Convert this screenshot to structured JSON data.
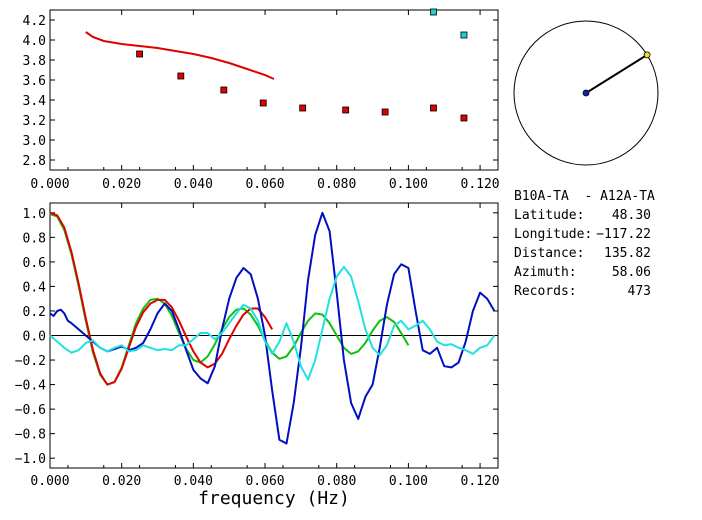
{
  "colors": {
    "red": "#e00000",
    "green": "#10c010",
    "blue": "#0010c0",
    "cyan": "#20e0e0",
    "square_red": "#e00000",
    "square_cyan": "#20d0d0",
    "station_yellow": "#e8e020",
    "station_blue": "#1020b0"
  },
  "chart_data": [
    {
      "type": "scatter",
      "name_hint": "top-panel",
      "xlim": [
        0.0,
        0.125
      ],
      "ylim": [
        2.7,
        4.3
      ],
      "xticks": [
        "0.000",
        "0.020",
        "0.040",
        "0.060",
        "0.080",
        "0.100",
        "0.120"
      ],
      "xtick_values": [
        0.0,
        0.02,
        0.04,
        0.06,
        0.08,
        0.1,
        0.12
      ],
      "yticks": [
        "2.8",
        "3.0",
        "3.2",
        "3.4",
        "3.6",
        "3.8",
        "4.0",
        "4.2"
      ],
      "ytick_values": [
        2.8,
        3.0,
        3.2,
        3.4,
        3.6,
        3.8,
        4.0,
        4.2
      ],
      "curve": {
        "color": "red",
        "x": [
          0.01,
          0.012,
          0.015,
          0.02,
          0.025,
          0.03,
          0.035,
          0.04,
          0.045,
          0.05,
          0.055,
          0.06,
          0.0625
        ],
        "y": [
          4.08,
          4.03,
          3.99,
          3.96,
          3.94,
          3.92,
          3.89,
          3.86,
          3.82,
          3.77,
          3.71,
          3.65,
          3.61
        ]
      },
      "points_red": {
        "x": [
          0.025,
          0.0365,
          0.0485,
          0.0595,
          0.0705,
          0.0825,
          0.0935,
          0.107,
          0.1155
        ],
        "y": [
          3.86,
          3.64,
          3.5,
          3.37,
          3.32,
          3.3,
          3.28,
          3.32,
          3.22
        ]
      },
      "points_cyan": {
        "x": [
          0.107,
          0.1155
        ],
        "y": [
          4.28,
          4.05
        ]
      }
    },
    {
      "type": "line",
      "name_hint": "bottom-panel",
      "xlabel": "frequency (Hz)",
      "xlim": [
        0.0,
        0.125
      ],
      "ylim": [
        -1.08,
        1.08
      ],
      "xticks": [
        "0.000",
        "0.020",
        "0.040",
        "0.060",
        "0.080",
        "0.100",
        "0.120"
      ],
      "xtick_values": [
        0.0,
        0.02,
        0.04,
        0.06,
        0.08,
        0.1,
        0.12
      ],
      "yticks": [
        "1.0",
        "0.8",
        "0.6",
        "0.4",
        "0.2",
        "0.0",
        "−0.2",
        "−0.4",
        "−0.6",
        "−0.8",
        "−1.0"
      ],
      "ytick_values": [
        1.0,
        0.8,
        0.6,
        0.4,
        0.2,
        0.0,
        -0.2,
        -0.4,
        -0.6,
        -0.8,
        -1.0
      ],
      "series": [
        {
          "color": "green",
          "x": [
            0.0,
            0.002,
            0.004,
            0.006,
            0.008,
            0.01,
            0.012,
            0.014,
            0.016,
            0.018,
            0.02,
            0.022,
            0.024,
            0.026,
            0.028,
            0.03,
            0.032,
            0.034,
            0.036,
            0.038,
            0.04,
            0.042,
            0.044,
            0.046,
            0.048,
            0.05,
            0.052,
            0.054,
            0.056,
            0.058,
            0.06,
            0.062,
            0.064,
            0.066,
            0.068,
            0.07,
            0.072,
            0.074,
            0.076,
            0.078,
            0.08,
            0.082,
            0.084,
            0.086,
            0.088,
            0.09,
            0.092,
            0.094,
            0.096,
            0.098,
            0.1
          ],
          "y": [
            0.99,
            0.97,
            0.86,
            0.66,
            0.4,
            0.12,
            -0.14,
            -0.32,
            -0.4,
            -0.38,
            -0.26,
            -0.08,
            0.1,
            0.22,
            0.29,
            0.3,
            0.26,
            0.16,
            0.02,
            -0.11,
            -0.2,
            -0.22,
            -0.17,
            -0.07,
            0.05,
            0.15,
            0.21,
            0.22,
            0.17,
            0.08,
            -0.04,
            -0.14,
            -0.19,
            -0.17,
            -0.09,
            0.02,
            0.12,
            0.18,
            0.17,
            0.1,
            0.0,
            -0.1,
            -0.15,
            -0.13,
            -0.06,
            0.04,
            0.12,
            0.15,
            0.11,
            0.02,
            -0.08
          ]
        },
        {
          "color": "red",
          "x": [
            0.0,
            0.002,
            0.004,
            0.006,
            0.008,
            0.01,
            0.012,
            0.014,
            0.016,
            0.018,
            0.02,
            0.022,
            0.024,
            0.026,
            0.028,
            0.03,
            0.032,
            0.034,
            0.036,
            0.038,
            0.04,
            0.042,
            0.044,
            0.046,
            0.048,
            0.05,
            0.052,
            0.054,
            0.056,
            0.058,
            0.06,
            0.062
          ],
          "y": [
            1.0,
            0.98,
            0.88,
            0.68,
            0.42,
            0.14,
            -0.12,
            -0.31,
            -0.4,
            -0.38,
            -0.27,
            -0.1,
            0.07,
            0.19,
            0.26,
            0.29,
            0.29,
            0.23,
            0.12,
            -0.01,
            -0.13,
            -0.22,
            -0.26,
            -0.23,
            -0.15,
            -0.03,
            0.08,
            0.17,
            0.22,
            0.22,
            0.15,
            0.05
          ]
        },
        {
          "color": "blue",
          "x": [
            0.0,
            0.001,
            0.002,
            0.003,
            0.004,
            0.005,
            0.006,
            0.008,
            0.01,
            0.012,
            0.014,
            0.016,
            0.018,
            0.02,
            0.022,
            0.024,
            0.026,
            0.028,
            0.03,
            0.032,
            0.034,
            0.036,
            0.038,
            0.04,
            0.042,
            0.044,
            0.046,
            0.048,
            0.05,
            0.052,
            0.054,
            0.056,
            0.058,
            0.06,
            0.062,
            0.064,
            0.066,
            0.068,
            0.07,
            0.072,
            0.074,
            0.076,
            0.078,
            0.08,
            0.082,
            0.084,
            0.086,
            0.088,
            0.09,
            0.092,
            0.094,
            0.096,
            0.098,
            0.1,
            0.102,
            0.104,
            0.106,
            0.108,
            0.11,
            0.112,
            0.114,
            0.116,
            0.118,
            0.12,
            0.122,
            0.124
          ],
          "y": [
            0.18,
            0.16,
            0.2,
            0.21,
            0.18,
            0.12,
            0.1,
            0.05,
            0.0,
            -0.05,
            -0.1,
            -0.13,
            -0.11,
            -0.09,
            -0.12,
            -0.1,
            -0.06,
            0.05,
            0.18,
            0.26,
            0.2,
            0.05,
            -0.12,
            -0.28,
            -0.35,
            -0.39,
            -0.25,
            0.05,
            0.3,
            0.47,
            0.55,
            0.5,
            0.3,
            0.0,
            -0.45,
            -0.85,
            -0.88,
            -0.55,
            -0.1,
            0.45,
            0.82,
            1.0,
            0.85,
            0.35,
            -0.2,
            -0.55,
            -0.68,
            -0.5,
            -0.4,
            -0.1,
            0.25,
            0.5,
            0.58,
            0.55,
            0.2,
            -0.12,
            -0.15,
            -0.1,
            -0.25,
            -0.26,
            -0.22,
            -0.05,
            0.2,
            0.35,
            0.3,
            0.2
          ]
        },
        {
          "color": "cyan",
          "x": [
            0.0,
            0.002,
            0.004,
            0.006,
            0.008,
            0.01,
            0.012,
            0.014,
            0.016,
            0.018,
            0.02,
            0.022,
            0.024,
            0.026,
            0.028,
            0.03,
            0.032,
            0.034,
            0.036,
            0.038,
            0.04,
            0.042,
            0.044,
            0.046,
            0.048,
            0.05,
            0.052,
            0.054,
            0.056,
            0.058,
            0.06,
            0.062,
            0.064,
            0.066,
            0.068,
            0.07,
            0.072,
            0.074,
            0.076,
            0.078,
            0.08,
            0.082,
            0.084,
            0.086,
            0.088,
            0.09,
            0.092,
            0.094,
            0.096,
            0.098,
            0.1,
            0.102,
            0.104,
            0.106,
            0.108,
            0.11,
            0.112,
            0.114,
            0.116,
            0.118,
            0.12,
            0.122,
            0.124
          ],
          "y": [
            0.0,
            -0.05,
            -0.1,
            -0.14,
            -0.12,
            -0.06,
            -0.04,
            -0.1,
            -0.13,
            -0.1,
            -0.08,
            -0.13,
            -0.12,
            -0.08,
            -0.1,
            -0.12,
            -0.11,
            -0.12,
            -0.08,
            -0.08,
            -0.03,
            0.02,
            0.02,
            -0.03,
            0.02,
            0.1,
            0.18,
            0.25,
            0.22,
            0.12,
            -0.05,
            -0.15,
            -0.05,
            0.1,
            -0.05,
            -0.25,
            -0.36,
            -0.2,
            0.05,
            0.3,
            0.48,
            0.56,
            0.48,
            0.28,
            0.05,
            -0.1,
            -0.16,
            -0.08,
            0.08,
            0.12,
            0.05,
            0.08,
            0.12,
            0.05,
            -0.05,
            -0.08,
            -0.07,
            -0.1,
            -0.12,
            -0.15,
            -0.1,
            -0.08,
            0.0
          ]
        }
      ]
    }
  ],
  "azimuth_plot": {
    "azimuth_deg": 58.06
  },
  "info": {
    "station_pair": "B10A-TA  - A12A-TA",
    "latitude_label": "Latitude:",
    "latitude_value": "48.30",
    "longitude_label": "Longitude:",
    "longitude_value": "−117.22",
    "distance_label": "Distance:",
    "distance_value": "135.82",
    "azimuth_label": "Azimuth:",
    "azimuth_value": "58.06",
    "records_label": "Records:",
    "records_value": "473"
  }
}
